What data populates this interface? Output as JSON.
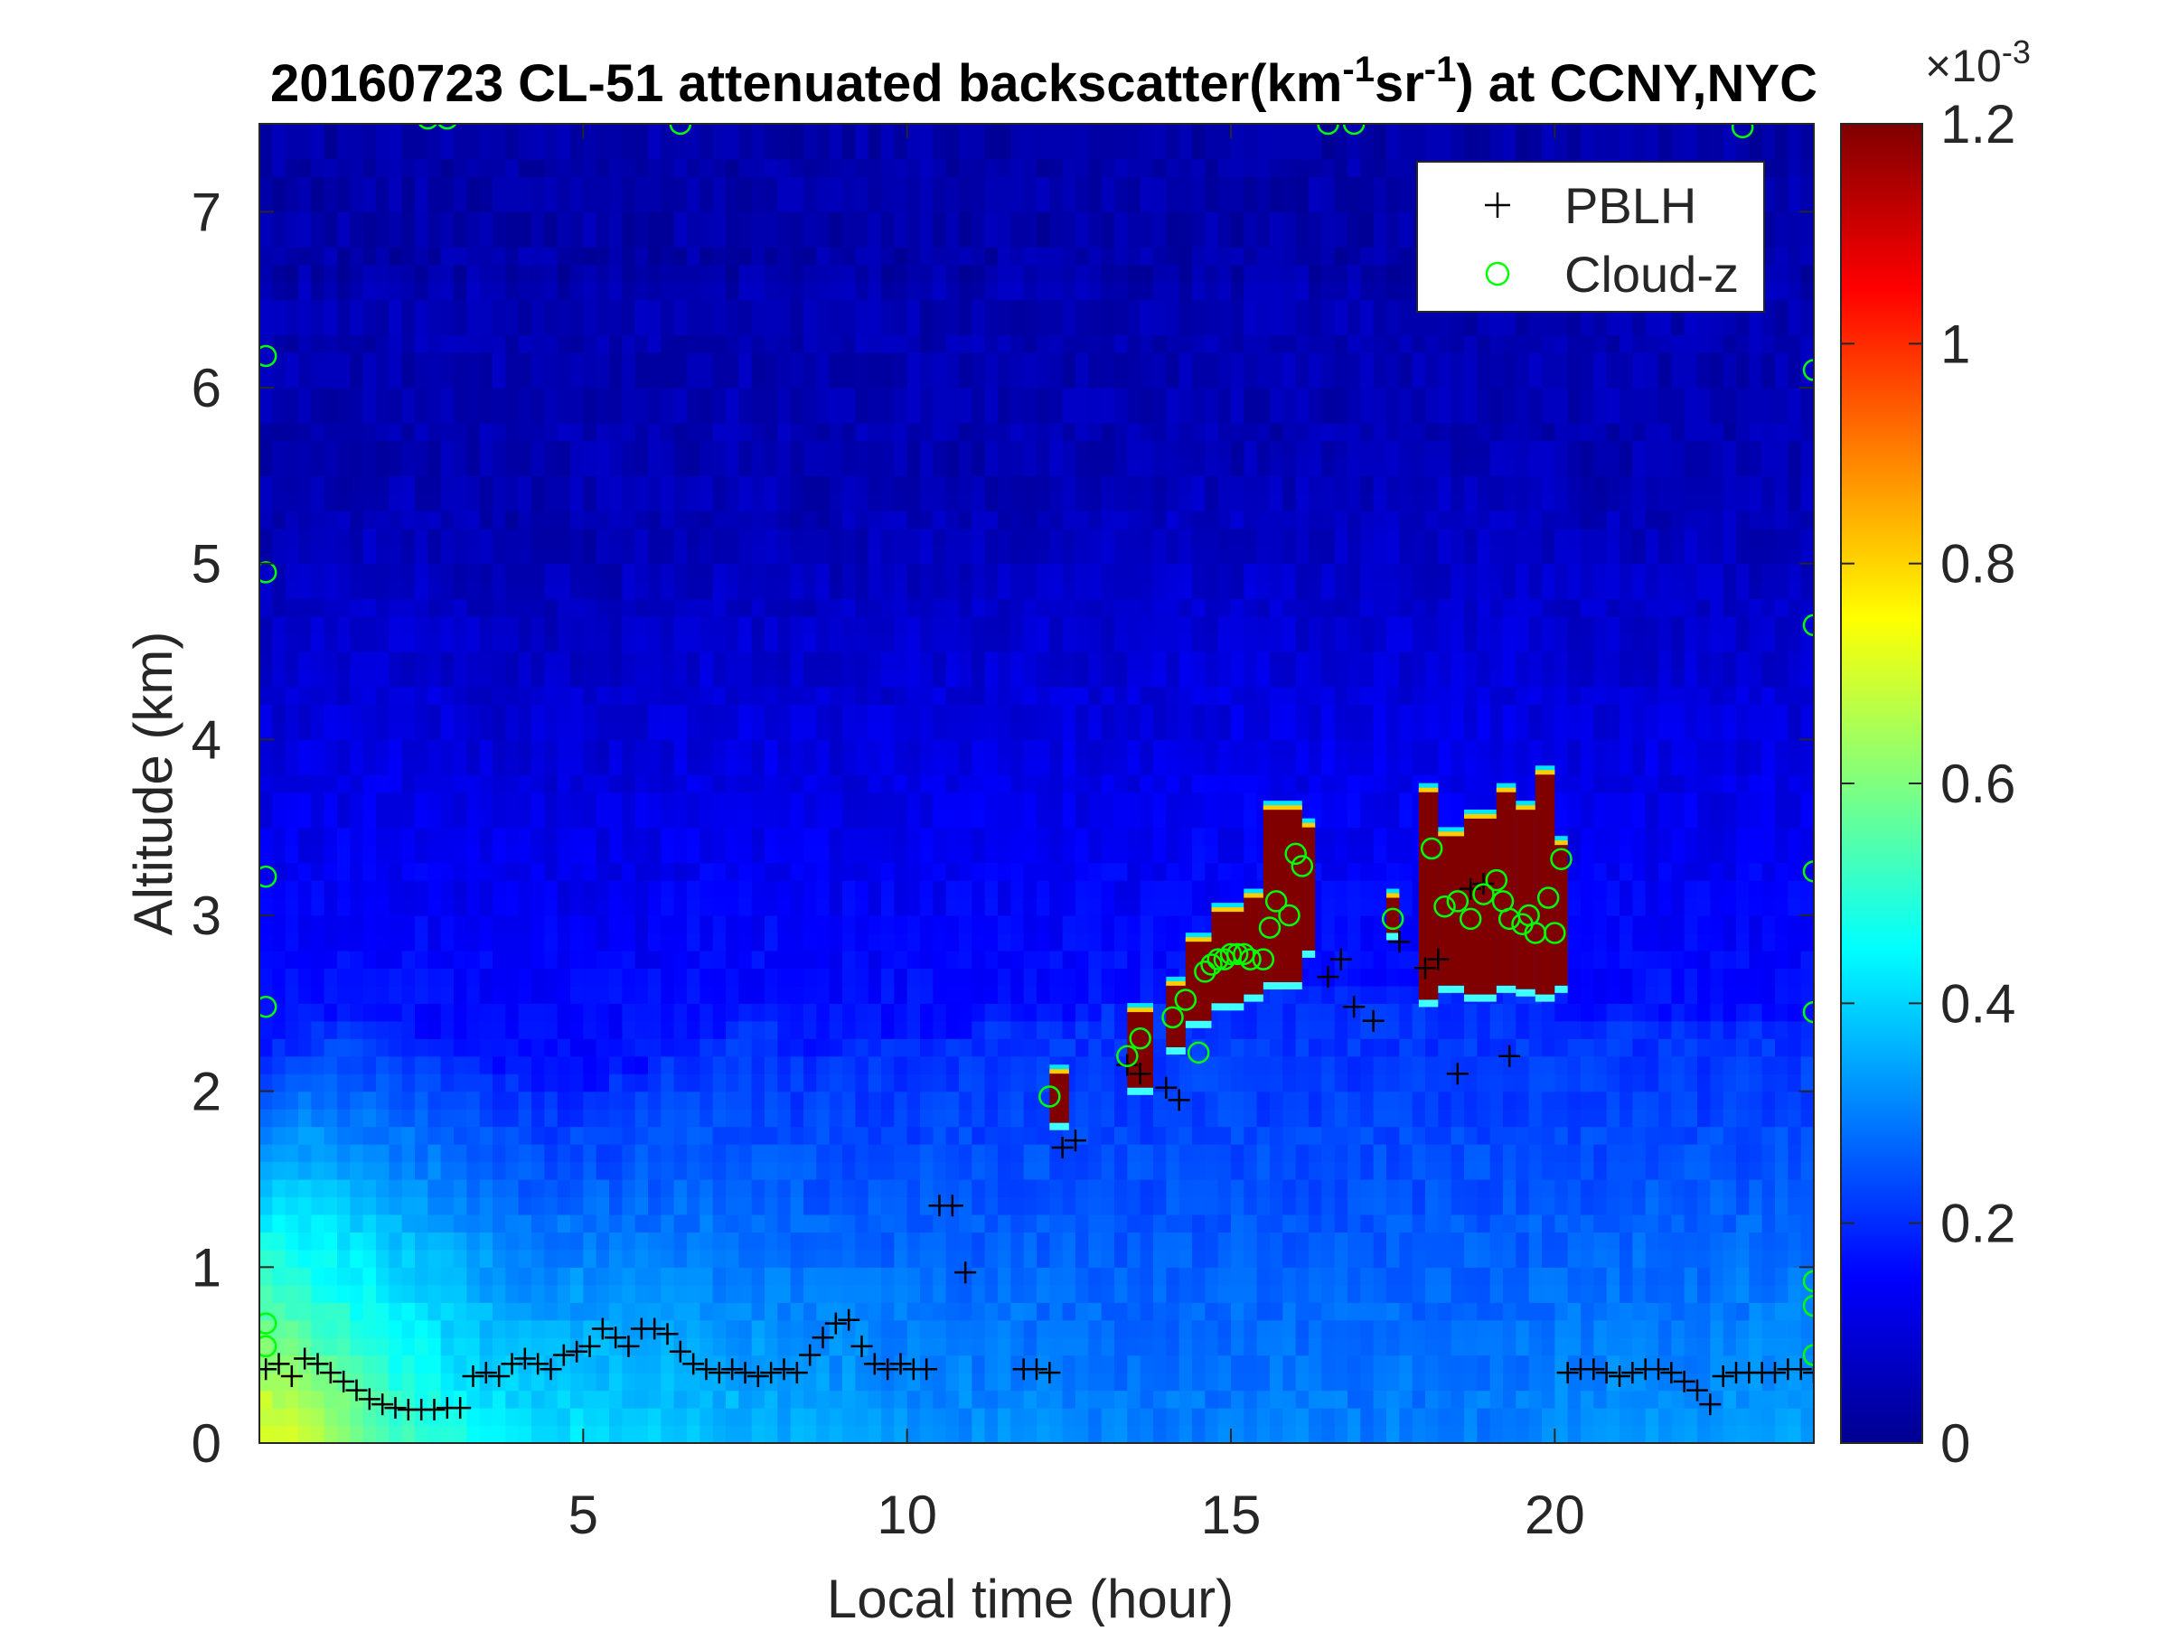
{
  "chart_data": {
    "type": "heatmap",
    "title_parts": {
      "prefix": "20160723  CL-51 attenuated backscatter(km",
      "sup1": "-1",
      "mid": "sr",
      "sup2": "-1",
      "suffix": ") at CCNY,NYC"
    },
    "xlabel": "Local time (hour)",
    "ylabel": "Altitude (km)",
    "xlim": [
      0,
      24
    ],
    "ylim": [
      0,
      7.5
    ],
    "x_ticks": [
      5,
      10,
      15,
      20
    ],
    "y_ticks": [
      0,
      1,
      2,
      3,
      4,
      5,
      6,
      7
    ],
    "colorbar": {
      "range": [
        0,
        1.2
      ],
      "ticks": [
        0,
        0.2,
        0.4,
        0.6,
        0.8,
        1,
        1.2
      ],
      "tick_labels": [
        "0",
        "0.2",
        "0.4",
        "0.6",
        "0.8",
        "1",
        "1.2"
      ],
      "exponent_base": "×10",
      "exponent": "-3",
      "colormap": "jet"
    },
    "legend": {
      "position": "top-right",
      "entries": [
        {
          "label": "PBLH",
          "marker": "+",
          "color": "#000000"
        },
        {
          "label": "Cloud-z",
          "marker": "o",
          "color": "#00ff00"
        }
      ]
    },
    "series": [
      {
        "name": "PBLH",
        "marker": "+",
        "points": [
          [
            0.1,
            0.42
          ],
          [
            0.3,
            0.45
          ],
          [
            0.5,
            0.38
          ],
          [
            0.7,
            0.48
          ],
          [
            0.9,
            0.45
          ],
          [
            1.1,
            0.4
          ],
          [
            1.3,
            0.35
          ],
          [
            1.5,
            0.3
          ],
          [
            1.7,
            0.25
          ],
          [
            1.9,
            0.22
          ],
          [
            2.1,
            0.2
          ],
          [
            2.3,
            0.19
          ],
          [
            2.5,
            0.19
          ],
          [
            2.7,
            0.19
          ],
          [
            2.9,
            0.2
          ],
          [
            3.1,
            0.2
          ],
          [
            3.3,
            0.38
          ],
          [
            3.5,
            0.4
          ],
          [
            3.7,
            0.38
          ],
          [
            3.9,
            0.45
          ],
          [
            4.1,
            0.48
          ],
          [
            4.3,
            0.45
          ],
          [
            4.5,
            0.42
          ],
          [
            4.7,
            0.5
          ],
          [
            4.9,
            0.52
          ],
          [
            5.1,
            0.55
          ],
          [
            5.3,
            0.65
          ],
          [
            5.5,
            0.6
          ],
          [
            5.7,
            0.55
          ],
          [
            5.9,
            0.65
          ],
          [
            6.1,
            0.65
          ],
          [
            6.3,
            0.62
          ],
          [
            6.5,
            0.52
          ],
          [
            6.7,
            0.45
          ],
          [
            6.9,
            0.42
          ],
          [
            7.1,
            0.4
          ],
          [
            7.3,
            0.42
          ],
          [
            7.5,
            0.4
          ],
          [
            7.7,
            0.38
          ],
          [
            7.9,
            0.4
          ],
          [
            8.1,
            0.42
          ],
          [
            8.3,
            0.4
          ],
          [
            8.5,
            0.5
          ],
          [
            8.7,
            0.6
          ],
          [
            8.9,
            0.68
          ],
          [
            9.1,
            0.7
          ],
          [
            9.3,
            0.55
          ],
          [
            9.5,
            0.45
          ],
          [
            9.7,
            0.42
          ],
          [
            9.9,
            0.45
          ],
          [
            10.1,
            0.42
          ],
          [
            10.3,
            0.42
          ],
          [
            10.5,
            1.35
          ],
          [
            10.7,
            1.35
          ],
          [
            10.9,
            0.97
          ],
          [
            11.8,
            0.42
          ],
          [
            12.0,
            0.42
          ],
          [
            12.2,
            0.4
          ],
          [
            12.4,
            1.68
          ],
          [
            12.6,
            1.72
          ],
          [
            13.4,
            2.15
          ],
          [
            13.6,
            2.1
          ],
          [
            14.0,
            2.02
          ],
          [
            14.2,
            1.95
          ],
          [
            16.5,
            2.65
          ],
          [
            16.7,
            2.75
          ],
          [
            16.9,
            2.48
          ],
          [
            17.2,
            2.4
          ],
          [
            17.6,
            2.85
          ],
          [
            18.0,
            2.7
          ],
          [
            18.2,
            2.75
          ],
          [
            18.5,
            2.1
          ],
          [
            18.7,
            3.15
          ],
          [
            18.9,
            3.18
          ],
          [
            19.3,
            2.2
          ],
          [
            20.2,
            0.4
          ],
          [
            20.4,
            0.42
          ],
          [
            20.6,
            0.42
          ],
          [
            20.8,
            0.4
          ],
          [
            21.0,
            0.38
          ],
          [
            21.2,
            0.4
          ],
          [
            21.4,
            0.42
          ],
          [
            21.6,
            0.42
          ],
          [
            21.8,
            0.4
          ],
          [
            22.0,
            0.35
          ],
          [
            22.2,
            0.3
          ],
          [
            22.4,
            0.22
          ],
          [
            22.6,
            0.38
          ],
          [
            22.8,
            0.4
          ],
          [
            23.0,
            0.4
          ],
          [
            23.2,
            0.4
          ],
          [
            23.4,
            0.4
          ],
          [
            23.6,
            0.42
          ],
          [
            23.8,
            0.42
          ],
          [
            24.0,
            0.4
          ]
        ]
      },
      {
        "name": "Cloud-z",
        "marker": "o",
        "points": [
          [
            12.2,
            1.97
          ],
          [
            13.4,
            2.2
          ],
          [
            13.6,
            2.3
          ],
          [
            14.1,
            2.42
          ],
          [
            14.3,
            2.52
          ],
          [
            14.5,
            2.22
          ],
          [
            14.6,
            2.68
          ],
          [
            14.7,
            2.72
          ],
          [
            14.8,
            2.75
          ],
          [
            14.9,
            2.75
          ],
          [
            15.0,
            2.78
          ],
          [
            15.1,
            2.78
          ],
          [
            15.2,
            2.78
          ],
          [
            15.3,
            2.75
          ],
          [
            15.5,
            2.75
          ],
          [
            15.6,
            2.93
          ],
          [
            15.7,
            3.08
          ],
          [
            15.9,
            3.0
          ],
          [
            16.0,
            3.35
          ],
          [
            16.1,
            3.28
          ],
          [
            17.5,
            2.98
          ],
          [
            18.1,
            3.38
          ],
          [
            18.3,
            3.05
          ],
          [
            18.5,
            3.08
          ],
          [
            18.7,
            2.98
          ],
          [
            18.9,
            3.12
          ],
          [
            19.1,
            3.2
          ],
          [
            19.2,
            3.08
          ],
          [
            19.3,
            2.98
          ],
          [
            19.5,
            2.95
          ],
          [
            19.6,
            3.0
          ],
          [
            19.7,
            2.9
          ],
          [
            19.9,
            3.1
          ],
          [
            20.0,
            2.9
          ],
          [
            20.1,
            3.32
          ],
          [
            0.1,
            6.18
          ],
          [
            0.1,
            4.95
          ],
          [
            0.1,
            3.22
          ],
          [
            0.1,
            2.48
          ],
          [
            0.1,
            0.68
          ],
          [
            0.1,
            0.55
          ],
          [
            24.0,
            6.1
          ],
          [
            24.0,
            4.65
          ],
          [
            24.0,
            3.25
          ],
          [
            24.0,
            2.45
          ],
          [
            24.0,
            0.92
          ],
          [
            24.0,
            0.78
          ],
          [
            24.0,
            0.5
          ],
          [
            2.6,
            7.53
          ],
          [
            2.9,
            7.53
          ],
          [
            6.5,
            7.5
          ],
          [
            16.5,
            7.5
          ],
          [
            16.9,
            7.5
          ],
          [
            22.9,
            7.48
          ]
        ]
      }
    ],
    "backscatter_field": {
      "boundary_layer_peak": [
        [
          0,
          0.75
        ],
        [
          1,
          0.65
        ],
        [
          2,
          0.55
        ],
        [
          3,
          0.48
        ],
        [
          4,
          0.42
        ],
        [
          5,
          0.42
        ],
        [
          6,
          0.4
        ],
        [
          7,
          0.38
        ],
        [
          8,
          0.36
        ],
        [
          9,
          0.35
        ],
        [
          10,
          0.33
        ],
        [
          11,
          0.32
        ],
        [
          12,
          0.32
        ],
        [
          13,
          0.3
        ],
        [
          14,
          0.3
        ],
        [
          15,
          0.3
        ],
        [
          16,
          0.3
        ],
        [
          17,
          0.3
        ],
        [
          18,
          0.3
        ],
        [
          19,
          0.3
        ],
        [
          20,
          0.32
        ],
        [
          21,
          0.33
        ],
        [
          22,
          0.33
        ],
        [
          23,
          0.34
        ],
        [
          24,
          0.35
        ]
      ],
      "cloud_blocks": [
        {
          "x": [
            12.2,
            12.5
          ],
          "y": [
            1.82,
            2.1
          ]
        },
        {
          "x": [
            13.4,
            13.8
          ],
          "y": [
            2.02,
            2.45
          ]
        },
        {
          "x": [
            14.0,
            14.3
          ],
          "y": [
            2.25,
            2.6
          ]
        },
        {
          "x": [
            14.3,
            14.7
          ],
          "y": [
            2.4,
            2.85
          ]
        },
        {
          "x": [
            14.7,
            15.2
          ],
          "y": [
            2.5,
            3.02
          ]
        },
        {
          "x": [
            15.2,
            15.5
          ],
          "y": [
            2.55,
            3.1
          ]
        },
        {
          "x": [
            15.5,
            16.1
          ],
          "y": [
            2.62,
            3.6
          ]
        },
        {
          "x": [
            16.1,
            16.3
          ],
          "y": [
            2.8,
            3.5
          ]
        },
        {
          "x": [
            17.4,
            17.6
          ],
          "y": [
            2.9,
            3.1
          ]
        },
        {
          "x": [
            17.9,
            18.2
          ],
          "y": [
            2.52,
            3.7
          ]
        },
        {
          "x": [
            18.2,
            18.6
          ],
          "y": [
            2.6,
            3.45
          ]
        },
        {
          "x": [
            18.6,
            19.1
          ],
          "y": [
            2.55,
            3.55
          ]
        },
        {
          "x": [
            19.1,
            19.4
          ],
          "y": [
            2.6,
            3.7
          ]
        },
        {
          "x": [
            19.4,
            19.7
          ],
          "y": [
            2.58,
            3.6
          ]
        },
        {
          "x": [
            19.7,
            20.0
          ],
          "y": [
            2.55,
            3.8
          ]
        },
        {
          "x": [
            20.0,
            20.2
          ],
          "y": [
            2.6,
            3.4
          ]
        }
      ]
    }
  }
}
